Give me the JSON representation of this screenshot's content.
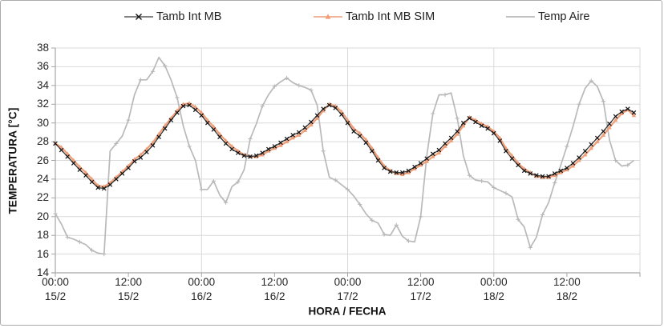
{
  "accent_colors": {
    "measured": "#3a3a3a",
    "simulated": "#f09e78",
    "air": "#b9b9b9",
    "grid": "#d9d9d9",
    "axis": "#a6a6a6",
    "text": "#262626"
  },
  "chart_data": {
    "type": "line",
    "title": "",
    "xlabel": "HORA / FECHA",
    "ylabel": "TEMPERATURA [°C]",
    "ylim": [
      14,
      38
    ],
    "yticks": [
      38,
      36,
      34,
      32,
      30,
      28,
      26,
      24,
      22,
      20,
      18,
      16,
      14
    ],
    "x_hours_total": 96,
    "x_ticks": [
      {
        "time": "00:00",
        "date": "15/2"
      },
      {
        "time": "12:00",
        "date": "15/2"
      },
      {
        "time": "00:00",
        "date": "16/2"
      },
      {
        "time": "12:00",
        "date": "16/2"
      },
      {
        "time": "00:00",
        "date": "17/2"
      },
      {
        "time": "12:00",
        "date": "17/2"
      },
      {
        "time": "00:00",
        "date": "18/2"
      },
      {
        "time": "12:00",
        "date": "18/2"
      }
    ],
    "grid": "horizontal every 2 degC, vertical at each midnight",
    "legend_position": "top",
    "series": [
      {
        "name": "Tamb Int MB",
        "color": "#3a3a3a",
        "marker": "x",
        "values": [
          27.8,
          27.1,
          26.4,
          25.7,
          25.0,
          24.4,
          23.7,
          23.1,
          23.0,
          23.4,
          24.0,
          24.6,
          25.2,
          25.9,
          26.3,
          26.9,
          27.6,
          28.5,
          29.4,
          30.3,
          31.1,
          31.8,
          31.9,
          31.4,
          30.8,
          30.0,
          29.3,
          28.5,
          27.8,
          27.2,
          26.8,
          26.5,
          26.4,
          26.5,
          26.8,
          27.2,
          27.5,
          27.9,
          28.3,
          28.7,
          29.0,
          29.5,
          30.1,
          30.8,
          31.5,
          31.9,
          31.6,
          30.9,
          30.0,
          29.1,
          28.6,
          27.9,
          27.0,
          26.0,
          25.2,
          24.8,
          24.7,
          24.7,
          24.9,
          25.3,
          25.7,
          26.2,
          26.7,
          27.1,
          27.8,
          28.4,
          29.1,
          30.0,
          30.5,
          30.1,
          29.7,
          29.4,
          28.9,
          28.1,
          27.0,
          26.2,
          25.5,
          24.9,
          24.6,
          24.4,
          24.3,
          24.3,
          24.6,
          24.9,
          25.2,
          25.7,
          26.3,
          27.0,
          27.7,
          28.4,
          29.1,
          29.9,
          30.7,
          31.2,
          31.5,
          31.1
        ]
      },
      {
        "name": "Tamb Int MB SIM",
        "color": "#f09e78",
        "marker": "triangle",
        "values": [
          27.8,
          27.4,
          26.7,
          26.0,
          25.3,
          24.7,
          24.0,
          23.3,
          23.2,
          23.6,
          24.2,
          24.8,
          25.4,
          26.1,
          26.6,
          27.2,
          27.9,
          28.8,
          29.7,
          30.5,
          31.3,
          32.0,
          32.1,
          31.7,
          31.1,
          30.3,
          29.6,
          28.8,
          28.1,
          27.5,
          27.0,
          26.6,
          26.4,
          26.4,
          26.6,
          27.0,
          27.3,
          27.6,
          28.0,
          28.4,
          28.7,
          29.2,
          29.8,
          30.5,
          31.3,
          32.0,
          31.8,
          31.2,
          30.3,
          29.4,
          28.9,
          28.2,
          27.3,
          26.3,
          25.4,
          24.9,
          24.6,
          24.5,
          24.7,
          25.1,
          25.5,
          25.9,
          26.4,
          26.8,
          27.5,
          28.1,
          28.8,
          29.7,
          30.6,
          30.3,
          29.9,
          29.6,
          29.1,
          28.4,
          27.3,
          26.5,
          25.7,
          25.1,
          24.7,
          24.3,
          24.2,
          24.2,
          24.4,
          24.7,
          25.0,
          25.4,
          26.0,
          26.6,
          27.3,
          28.0,
          28.7,
          29.5,
          30.3,
          31.0,
          31.4,
          30.8
        ]
      },
      {
        "name": "Temp Aire",
        "color": "#b9b9b9",
        "marker": "plus",
        "values": [
          20.3,
          19.2,
          17.8,
          17.6,
          17.3,
          17.0,
          16.4,
          16.1,
          16.0,
          27.0,
          27.8,
          28.6,
          30.3,
          33.0,
          34.6,
          34.6,
          35.5,
          37.0,
          36.1,
          34.6,
          32.7,
          29.7,
          27.5,
          26.0,
          22.9,
          22.9,
          23.8,
          22.3,
          21.5,
          23.2,
          23.7,
          25.0,
          28.3,
          29.9,
          31.8,
          33.0,
          33.9,
          34.4,
          34.8,
          34.3,
          34.0,
          33.8,
          33.5,
          31.9,
          27.0,
          24.2,
          23.9,
          23.4,
          22.9,
          22.2,
          21.3,
          20.3,
          19.6,
          19.3,
          18.1,
          18.0,
          19.1,
          17.9,
          17.4,
          17.3,
          20.0,
          26.5,
          31.0,
          33.0,
          33.0,
          33.2,
          30.5,
          26.5,
          24.4,
          23.9,
          23.8,
          23.7,
          23.1,
          22.8,
          22.5,
          22.1,
          19.7,
          18.9,
          16.7,
          17.8,
          20.2,
          21.5,
          23.6,
          25.5,
          27.5,
          29.6,
          32.0,
          33.7,
          34.5,
          33.9,
          32.3,
          28.2,
          26.0,
          25.4,
          25.5,
          26.0
        ]
      }
    ]
  }
}
